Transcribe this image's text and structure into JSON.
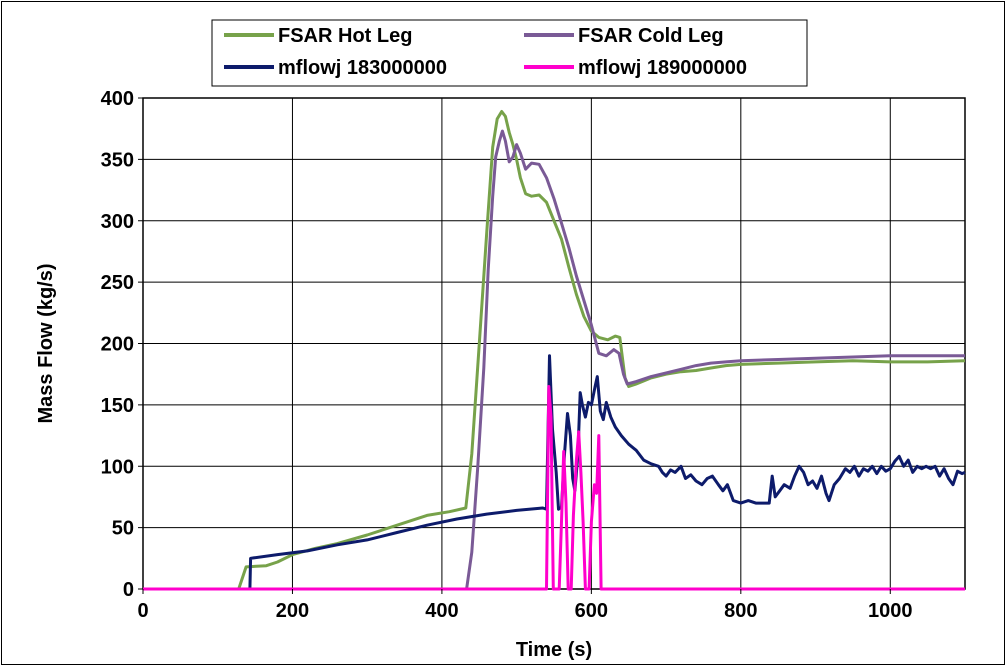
{
  "chart_data": {
    "type": "line",
    "xlabel": "Time (s)",
    "ylabel": "Mass Flow (kg/s)",
    "xlim": [
      0,
      1100
    ],
    "ylim": [
      0,
      400
    ],
    "x_ticks": [
      0,
      200,
      400,
      600,
      800,
      1000
    ],
    "y_ticks": [
      0,
      50,
      100,
      150,
      200,
      250,
      300,
      350,
      400
    ],
    "grid": true,
    "legend_position": "top",
    "series": [
      {
        "name": "FSAR Hot Leg",
        "color": "#77a24a",
        "points": [
          [
            128,
            0
          ],
          [
            138,
            18
          ],
          [
            165,
            19
          ],
          [
            180,
            22
          ],
          [
            200,
            28
          ],
          [
            230,
            33
          ],
          [
            260,
            37
          ],
          [
            300,
            44
          ],
          [
            340,
            52
          ],
          [
            380,
            60
          ],
          [
            410,
            63
          ],
          [
            432,
            66
          ],
          [
            440,
            110
          ],
          [
            450,
            200
          ],
          [
            460,
            290
          ],
          [
            468,
            360
          ],
          [
            474,
            383
          ],
          [
            480,
            389
          ],
          [
            485,
            385
          ],
          [
            490,
            372
          ],
          [
            495,
            362
          ],
          [
            500,
            350
          ],
          [
            505,
            335
          ],
          [
            512,
            322
          ],
          [
            520,
            320
          ],
          [
            530,
            321
          ],
          [
            540,
            315
          ],
          [
            550,
            300
          ],
          [
            560,
            285
          ],
          [
            570,
            262
          ],
          [
            580,
            240
          ],
          [
            590,
            222
          ],
          [
            600,
            210
          ],
          [
            610,
            205
          ],
          [
            622,
            203
          ],
          [
            632,
            206
          ],
          [
            638,
            205
          ],
          [
            645,
            172
          ],
          [
            650,
            165
          ],
          [
            660,
            167
          ],
          [
            680,
            172
          ],
          [
            700,
            175
          ],
          [
            720,
            177
          ],
          [
            740,
            178
          ],
          [
            760,
            180
          ],
          [
            780,
            182
          ],
          [
            800,
            183
          ],
          [
            850,
            184
          ],
          [
            900,
            185
          ],
          [
            950,
            186
          ],
          [
            1000,
            185
          ],
          [
            1050,
            185
          ],
          [
            1100,
            186
          ]
        ]
      },
      {
        "name": "FSAR Cold Leg",
        "color": "#7a5a96",
        "points": [
          [
            0,
            0
          ],
          [
            433,
            0
          ],
          [
            440,
            30
          ],
          [
            448,
            100
          ],
          [
            456,
            180
          ],
          [
            462,
            260
          ],
          [
            468,
            320
          ],
          [
            472,
            352
          ],
          [
            477,
            365
          ],
          [
            481,
            373
          ],
          [
            485,
            365
          ],
          [
            490,
            348
          ],
          [
            495,
            352
          ],
          [
            500,
            362
          ],
          [
            505,
            355
          ],
          [
            512,
            342
          ],
          [
            520,
            347
          ],
          [
            530,
            346
          ],
          [
            540,
            335
          ],
          [
            550,
            318
          ],
          [
            560,
            298
          ],
          [
            570,
            278
          ],
          [
            580,
            255
          ],
          [
            590,
            235
          ],
          [
            600,
            215
          ],
          [
            610,
            192
          ],
          [
            620,
            190
          ],
          [
            630,
            195
          ],
          [
            637,
            192
          ],
          [
            643,
            175
          ],
          [
            648,
            167
          ],
          [
            660,
            169
          ],
          [
            680,
            173
          ],
          [
            700,
            176
          ],
          [
            720,
            179
          ],
          [
            740,
            182
          ],
          [
            760,
            184
          ],
          [
            780,
            185
          ],
          [
            800,
            186
          ],
          [
            850,
            187
          ],
          [
            900,
            188
          ],
          [
            950,
            189
          ],
          [
            1000,
            190
          ],
          [
            1050,
            190
          ],
          [
            1100,
            190
          ]
        ]
      },
      {
        "name": "mflowj 183000000",
        "color": "#0d1b6b",
        "points": [
          [
            0,
            0
          ],
          [
            143,
            0
          ],
          [
            144,
            25
          ],
          [
            180,
            28
          ],
          [
            220,
            31
          ],
          [
            260,
            36
          ],
          [
            300,
            40
          ],
          [
            340,
            46
          ],
          [
            380,
            52
          ],
          [
            420,
            57
          ],
          [
            460,
            61
          ],
          [
            500,
            64
          ],
          [
            535,
            66
          ],
          [
            540,
            65
          ],
          [
            544,
            190
          ],
          [
            548,
            130
          ],
          [
            553,
            95
          ],
          [
            556,
            65
          ],
          [
            560,
            67
          ],
          [
            564,
            110
          ],
          [
            568,
            143
          ],
          [
            572,
            125
          ],
          [
            575,
            90
          ],
          [
            578,
            80
          ],
          [
            582,
            110
          ],
          [
            585,
            160
          ],
          [
            588,
            150
          ],
          [
            592,
            140
          ],
          [
            596,
            152
          ],
          [
            600,
            150
          ],
          [
            605,
            165
          ],
          [
            608,
            173
          ],
          [
            612,
            145
          ],
          [
            616,
            138
          ],
          [
            620,
            152
          ],
          [
            626,
            140
          ],
          [
            632,
            132
          ],
          [
            640,
            125
          ],
          [
            650,
            118
          ],
          [
            660,
            113
          ],
          [
            670,
            105
          ],
          [
            680,
            102
          ],
          [
            690,
            100
          ],
          [
            695,
            95
          ],
          [
            700,
            92
          ],
          [
            706,
            97
          ],
          [
            712,
            95
          ],
          [
            720,
            100
          ],
          [
            726,
            90
          ],
          [
            733,
            93
          ],
          [
            740,
            88
          ],
          [
            748,
            85
          ],
          [
            755,
            90
          ],
          [
            762,
            92
          ],
          [
            770,
            85
          ],
          [
            776,
            80
          ],
          [
            782,
            85
          ],
          [
            790,
            72
          ],
          [
            800,
            70
          ],
          [
            810,
            72
          ],
          [
            820,
            70
          ],
          [
            830,
            70
          ],
          [
            838,
            70
          ],
          [
            842,
            92
          ],
          [
            846,
            75
          ],
          [
            852,
            80
          ],
          [
            858,
            85
          ],
          [
            866,
            82
          ],
          [
            872,
            92
          ],
          [
            878,
            100
          ],
          [
            884,
            95
          ],
          [
            890,
            85
          ],
          [
            896,
            88
          ],
          [
            902,
            82
          ],
          [
            908,
            92
          ],
          [
            914,
            78
          ],
          [
            918,
            72
          ],
          [
            925,
            85
          ],
          [
            932,
            90
          ],
          [
            940,
            98
          ],
          [
            946,
            95
          ],
          [
            952,
            100
          ],
          [
            958,
            92
          ],
          [
            964,
            98
          ],
          [
            970,
            96
          ],
          [
            976,
            100
          ],
          [
            982,
            94
          ],
          [
            988,
            100
          ],
          [
            994,
            96
          ],
          [
            1000,
            98
          ],
          [
            1006,
            104
          ],
          [
            1012,
            108
          ],
          [
            1018,
            100
          ],
          [
            1024,
            105
          ],
          [
            1030,
            95
          ],
          [
            1036,
            100
          ],
          [
            1042,
            98
          ],
          [
            1048,
            100
          ],
          [
            1054,
            98
          ],
          [
            1060,
            100
          ],
          [
            1066,
            92
          ],
          [
            1072,
            98
          ],
          [
            1078,
            90
          ],
          [
            1084,
            85
          ],
          [
            1090,
            96
          ],
          [
            1096,
            94
          ],
          [
            1100,
            95
          ]
        ]
      },
      {
        "name": "mflowj 189000000",
        "color": "#ff00cc",
        "points": [
          [
            0,
            0
          ],
          [
            538,
            0
          ],
          [
            540,
            0
          ],
          [
            543,
            165
          ],
          [
            546,
            140
          ],
          [
            549,
            0
          ],
          [
            553,
            0
          ],
          [
            557,
            0
          ],
          [
            560,
            55
          ],
          [
            563,
            112
          ],
          [
            566,
            70
          ],
          [
            569,
            0
          ],
          [
            573,
            0
          ],
          [
            576,
            60
          ],
          [
            580,
            105
          ],
          [
            583,
            128
          ],
          [
            586,
            95
          ],
          [
            589,
            55
          ],
          [
            592,
            0
          ],
          [
            597,
            0
          ],
          [
            600,
            55
          ],
          [
            604,
            85
          ],
          [
            607,
            78
          ],
          [
            610,
            125
          ],
          [
            613,
            0
          ],
          [
            1100,
            0
          ]
        ]
      }
    ]
  }
}
